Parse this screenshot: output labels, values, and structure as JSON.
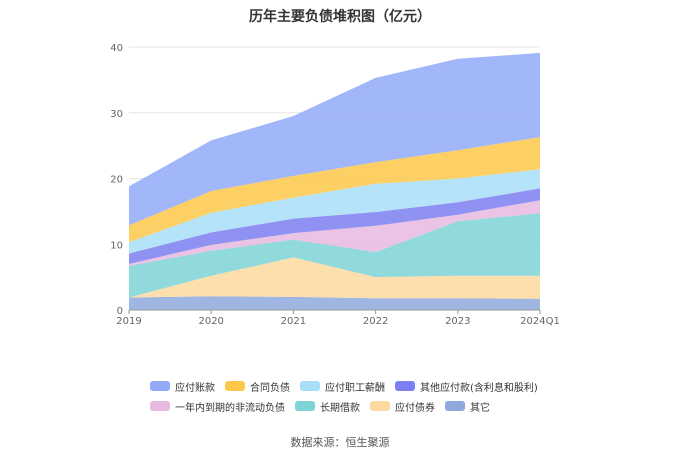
{
  "title": "历年主要负债堆积图（亿元）",
  "source": "数据来源：恒生聚源",
  "chart_data": {
    "type": "area",
    "stacked": true,
    "title": "历年主要负债堆积图（亿元）",
    "xlabel": "",
    "ylabel": "",
    "categories": [
      "2019",
      "2020",
      "2021",
      "2022",
      "2023",
      "2024Q1"
    ],
    "ylim": [
      0,
      40
    ],
    "yticks": [
      0,
      10,
      20,
      30,
      40
    ],
    "grid": true,
    "legend_position": "bottom",
    "series": [
      {
        "name": "其它",
        "color": "#8fa9dd",
        "values": [
          1.9,
          2.1,
          2.0,
          1.8,
          1.8,
          1.7
        ]
      },
      {
        "name": "应付债券",
        "color": "#fdd9a0",
        "values": [
          0.0,
          3.1,
          6.0,
          3.2,
          3.4,
          3.5
        ]
      },
      {
        "name": "长期借款",
        "color": "#7dd3d6",
        "values": [
          4.8,
          3.8,
          2.7,
          3.8,
          8.3,
          9.5
        ]
      },
      {
        "name": "一年内到期的非流动负债",
        "color": "#e8b8df",
        "values": [
          0.3,
          0.9,
          1.0,
          4.0,
          1.0,
          2.0
        ]
      },
      {
        "name": "其他应付款(含利息和股利)",
        "color": "#7b7ff0",
        "values": [
          1.6,
          1.9,
          2.2,
          2.1,
          1.9,
          1.8
        ]
      },
      {
        "name": "应付职工薪酬",
        "color": "#a8def8",
        "values": [
          1.7,
          3.0,
          3.2,
          4.3,
          3.6,
          2.9
        ]
      },
      {
        "name": "合同负债",
        "color": "#fcc84a",
        "values": [
          2.6,
          3.3,
          3.3,
          3.3,
          4.3,
          4.9
        ]
      },
      {
        "name": "应付账款",
        "color": "#92aaf8",
        "values": [
          5.9,
          7.7,
          9.1,
          12.8,
          13.9,
          12.8
        ]
      }
    ],
    "legend_order": [
      "应付账款",
      "合同负债",
      "应付职工薪酬",
      "其他应付款(含利息和股利)",
      "一年内到期的非流动负债",
      "长期借款",
      "应付债券",
      "其它"
    ]
  }
}
